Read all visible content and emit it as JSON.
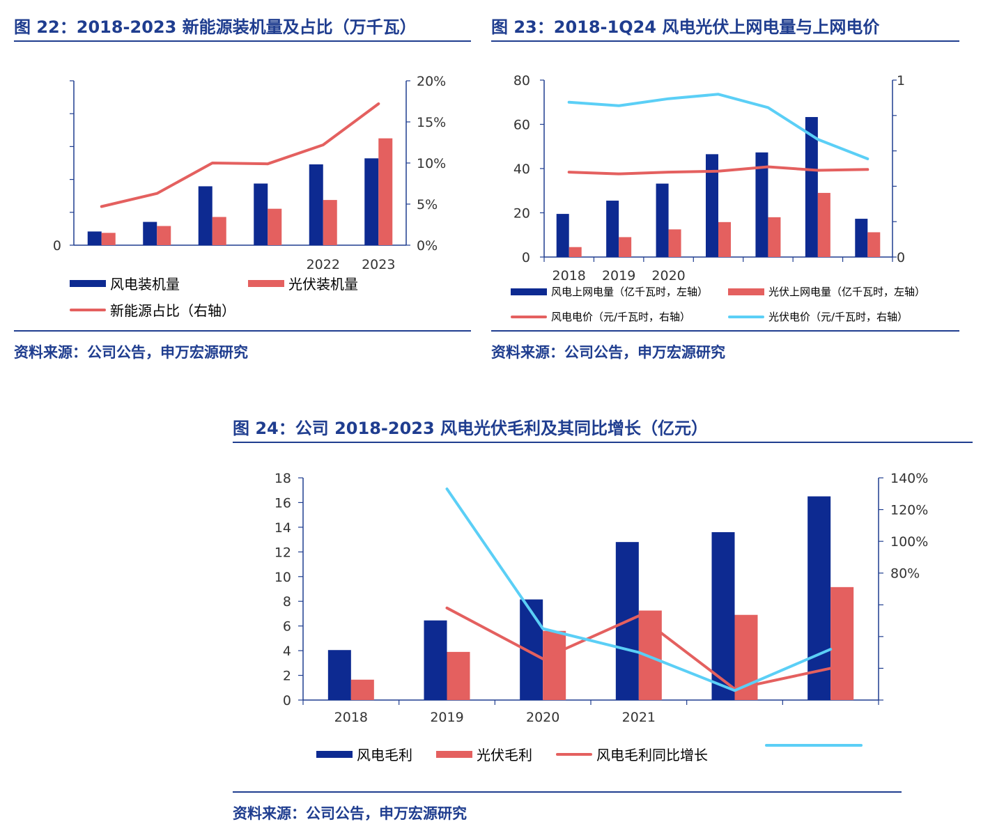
{
  "colors": {
    "wind": "#0d2a91",
    "solar": "#e4605f",
    "wind_line": "#e4605f",
    "solar_line": "#5bcff6",
    "axis": "#1f3d8f",
    "title": "#1f3d8f"
  },
  "panel22": {
    "title": "图 22：2018-2023 新能源装机量及占比（万千瓦）",
    "source": "资料来源：公司公告，申万宏源研究",
    "legend": {
      "wind": "风电装机量",
      "solar": "光伏装机量",
      "share": "新能源占比（右轴）"
    }
  },
  "panel23": {
    "title": "图 23：2018-1Q24 风电光伏上网电量与上网电价",
    "source": "资料来源：公司公告，申万宏源研究",
    "legend": {
      "wind_gen": "风电上网电量（亿千瓦时，左轴）",
      "solar_gen": "光伏上网电量（亿千瓦时，左轴）",
      "wind_price": "风电电价（元/千瓦时，右轴）",
      "solar_price": "光伏电价（元/千瓦时，右轴）"
    }
  },
  "panel24": {
    "title": "图 24：公司 2018-2023 风电光伏毛利及其同比增长（亿元）",
    "source": "资料来源：公司公告，申万宏源研究",
    "legend": {
      "wind": "风电毛利",
      "solar": "光伏毛利",
      "wind_yoy": "风电毛利同比增长",
      "solar_yoy": ""
    }
  },
  "chart_data": [
    {
      "type": "bar",
      "categories": [
        "",
        "",
        "",
        "",
        "2022",
        "2023"
      ],
      "series": [
        {
          "name": "风电装机量",
          "kind": "bar",
          "axis": "left",
          "color": "#0d2a91",
          "values": [
            5,
            8.5,
            21.5,
            22.5,
            29.5,
            31.7
          ]
        },
        {
          "name": "光伏装机量",
          "kind": "bar",
          "axis": "left",
          "color": "#e4605f",
          "values": [
            4.5,
            7,
            10.3,
            13.3,
            16.5,
            39
          ]
        },
        {
          "name": "新能源占比（右轴）",
          "kind": "line",
          "axis": "right",
          "color": "#e4605f",
          "values": [
            4.7,
            6.3,
            10.0,
            9.9,
            12.2,
            17.2
          ]
        }
      ],
      "ylim": [
        0,
        60
      ],
      "y2lim": [
        0,
        20
      ],
      "ytick_labels": [
        "0",
        "",
        "",
        "",
        "",
        ""
      ],
      "y2ticks": [
        "0%",
        "5%",
        "10%",
        "15%",
        "20%"
      ]
    },
    {
      "type": "bar",
      "categories": [
        "2018",
        "2019",
        "2020",
        "",
        "",
        "",
        ""
      ],
      "series": [
        {
          "name": "风电上网电量（亿千瓦时，左轴）",
          "kind": "bar",
          "axis": "left",
          "color": "#0d2a91",
          "values": [
            19.5,
            25.5,
            33.2,
            46.5,
            47.3,
            63.3,
            17.3
          ]
        },
        {
          "name": "光伏上网电量（亿千瓦时，左轴）",
          "kind": "bar",
          "axis": "left",
          "color": "#e4605f",
          "values": [
            4.5,
            9.0,
            12.5,
            15.8,
            18.0,
            29.0,
            11.2
          ]
        },
        {
          "name": "风电电价（元/千瓦时，右轴）",
          "kind": "line",
          "axis": "right",
          "color": "#e4605f",
          "values": [
            0.48,
            0.47,
            0.48,
            0.485,
            0.51,
            0.49,
            0.495
          ]
        },
        {
          "name": "光伏电价（元/千瓦时，右轴）",
          "kind": "line",
          "axis": "right",
          "color": "#5bcff6",
          "values": [
            0.875,
            0.855,
            0.895,
            0.92,
            0.845,
            0.665,
            0.555
          ]
        }
      ],
      "ylim": [
        0,
        80
      ],
      "y2lim": [
        0,
        1
      ],
      "yticks": [
        "0",
        "20",
        "40",
        "60",
        "80"
      ],
      "y2ticks": [
        "0",
        "",
        "",
        "",
        "",
        "1"
      ]
    },
    {
      "type": "bar",
      "categories": [
        "2018",
        "2019",
        "2020",
        "2021",
        "",
        ""
      ],
      "series": [
        {
          "name": "风电毛利",
          "kind": "bar",
          "axis": "left",
          "color": "#0d2a91",
          "values": [
            4.05,
            6.45,
            8.15,
            12.8,
            13.6,
            16.5
          ]
        },
        {
          "name": "光伏毛利",
          "kind": "bar",
          "axis": "left",
          "color": "#e4605f",
          "values": [
            1.65,
            3.9,
            5.6,
            7.25,
            6.9,
            9.15
          ]
        },
        {
          "name": "风电毛利同比增长",
          "kind": "line",
          "axis": "right",
          "color": "#e4605f",
          "values": [
            null,
            58,
            26,
            53,
            7,
            20
          ]
        },
        {
          "name": "",
          "kind": "line",
          "axis": "right",
          "color": "#5bcff6",
          "values": [
            null,
            133,
            45,
            30,
            6,
            32
          ]
        }
      ],
      "ylim": [
        0,
        18
      ],
      "y2lim": [
        0,
        140
      ],
      "yticks": [
        "0",
        "2",
        "4",
        "6",
        "8",
        "10",
        "12",
        "14",
        "16",
        "18"
      ],
      "y2ticks": [
        "",
        "",
        "",
        "",
        "80%",
        "100%",
        "120%",
        "140%"
      ]
    }
  ]
}
